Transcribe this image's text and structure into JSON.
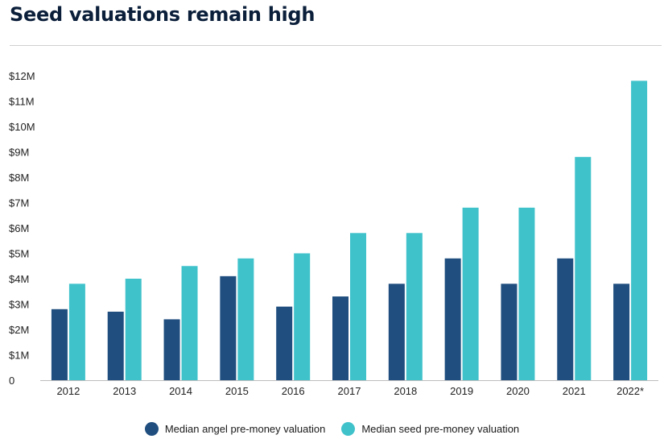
{
  "title": "Seed valuations remain high",
  "chart_data": {
    "type": "bar",
    "title": "Seed valuations remain high",
    "categories": [
      "2012",
      "2013",
      "2014",
      "2015",
      "2016",
      "2017",
      "2018",
      "2019",
      "2020",
      "2021",
      "2022*"
    ],
    "series": [
      {
        "name": "Median angel pre-money valuation",
        "color": "#1f4e7f",
        "values": [
          2.8,
          2.7,
          2.4,
          4.1,
          2.9,
          3.3,
          3.8,
          4.8,
          3.8,
          4.8,
          3.8
        ]
      },
      {
        "name": "Median seed pre-money valuation",
        "color": "#40c2cb",
        "values": [
          3.8,
          4.0,
          4.5,
          4.8,
          5.0,
          5.8,
          5.8,
          6.8,
          6.8,
          8.8,
          11.8
        ]
      }
    ],
    "yticks": [
      "0",
      "$1M",
      "$2M",
      "$3M",
      "$4M",
      "$5M",
      "$6M",
      "$7M",
      "$8M",
      "$9M",
      "$10M",
      "$11M",
      "$12M"
    ],
    "ylim": [
      0,
      12
    ],
    "xlabel": "",
    "ylabel": "",
    "grid": false,
    "legend_position": "bottom-center"
  }
}
